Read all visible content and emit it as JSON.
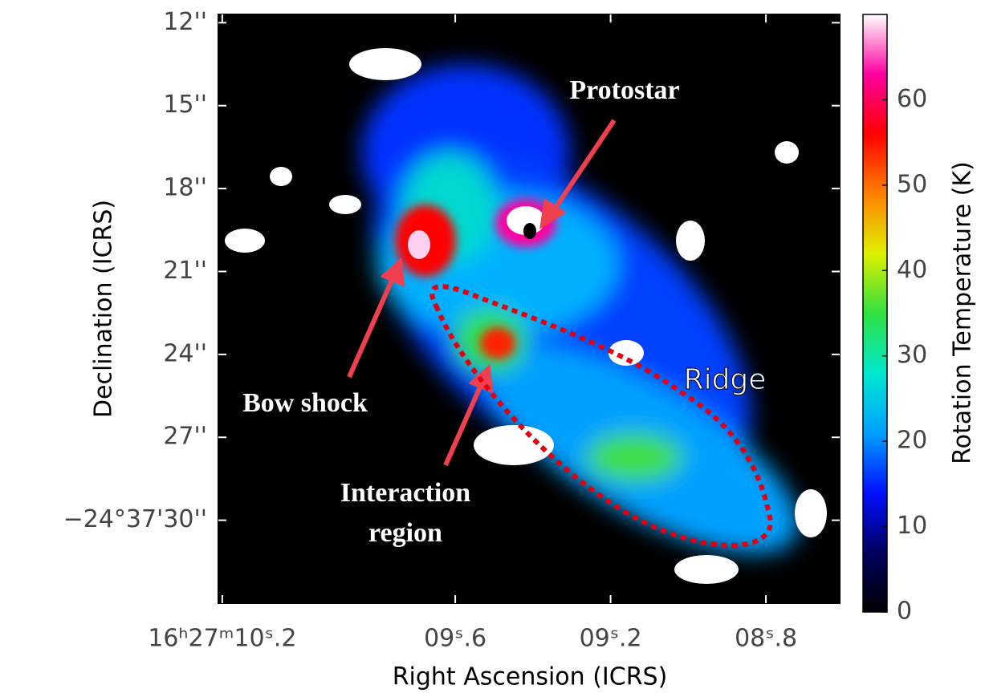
{
  "chart_data": {
    "type": "image",
    "x_label": "Right Ascension (ICRS)",
    "y_label": "Declination (ICRS)",
    "colorbar_label": "Rotation Temperature (K)",
    "xlim": [
      10.21,
      8.61
    ],
    "xticks": [
      {
        "value": 10.2,
        "label": "16ʰ27ᵐ10ˢ.2"
      },
      {
        "value": 9.6,
        "label": "09ˢ.6"
      },
      {
        "value": 9.2,
        "label": "09ˢ.2"
      },
      {
        "value": 8.8,
        "label": "08ˢ.8"
      }
    ],
    "ylim": [
      11.7,
      33.0
    ],
    "yticks": [
      {
        "value": 12,
        "label": "12''"
      },
      {
        "value": 15,
        "label": "15''"
      },
      {
        "value": 18,
        "label": "18''"
      },
      {
        "value": 21,
        "label": "21''"
      },
      {
        "value": 24,
        "label": "24''"
      },
      {
        "value": 27,
        "label": "27''"
      },
      {
        "value": 30,
        "label": "−24°37'30''"
      }
    ],
    "clim": [
      0,
      70
    ],
    "cticks": [
      0,
      10,
      20,
      30,
      40,
      50,
      60
    ],
    "colormap": [
      "#000000",
      "#000060",
      "#0010ff",
      "#00a0ff",
      "#00e8d0",
      "#30e040",
      "#e0f000",
      "#ff8000",
      "#ff0000",
      "#ff00a0",
      "#ffffff"
    ],
    "annotations": [
      "Protostar",
      "Bow shock",
      "Interaction",
      "region",
      "Ridge"
    ]
  }
}
